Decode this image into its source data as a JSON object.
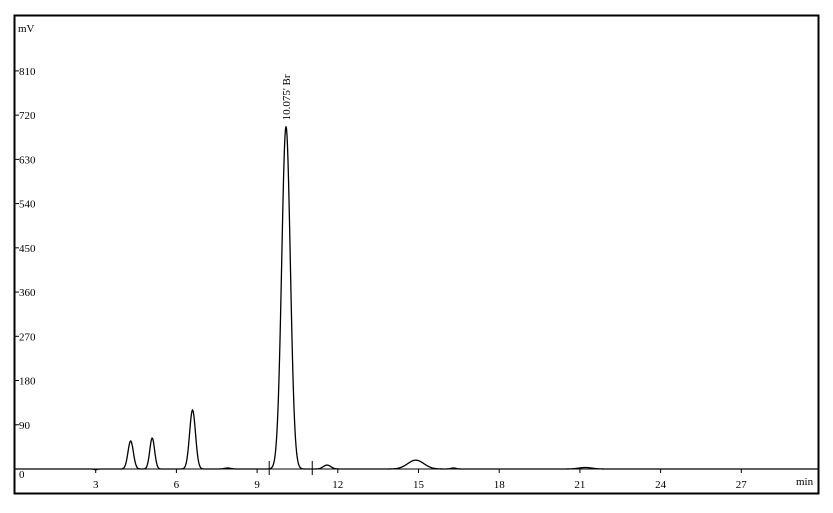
{
  "chart_data": {
    "type": "line",
    "xlabel": "min",
    "ylabel": "mV",
    "xlim": [
      0,
      29.3
    ],
    "ylim": [
      -40,
      925
    ],
    "x_ticks": [
      3,
      6,
      9,
      12,
      15,
      18,
      21,
      24,
      27
    ],
    "y_ticks": [
      0,
      90,
      180,
      270,
      360,
      450,
      540,
      630,
      720,
      810
    ],
    "grid": false,
    "peaks": [
      {
        "time": 4.3,
        "height": 57,
        "width": 0.1
      },
      {
        "time": 5.1,
        "height": 63,
        "width": 0.09
      },
      {
        "time": 6.6,
        "height": 120,
        "width": 0.11
      },
      {
        "time": 7.9,
        "height": 2,
        "width": 0.12
      },
      {
        "time": 10.075,
        "height": 697,
        "width": 0.16,
        "label": "10.075'  Br"
      },
      {
        "time": 11.6,
        "height": 8,
        "width": 0.14
      },
      {
        "time": 14.9,
        "height": 18,
        "width": 0.3
      },
      {
        "time": 16.3,
        "height": 2,
        "width": 0.1
      },
      {
        "time": 21.2,
        "height": 3,
        "width": 0.25
      }
    ],
    "dips": [
      {
        "time": 3.0,
        "depth": 1.5,
        "width": 0.06
      }
    ],
    "integration_markers": [
      9.45,
      11.05
    ],
    "peak_labels": [
      "10.075'  Br"
    ]
  }
}
